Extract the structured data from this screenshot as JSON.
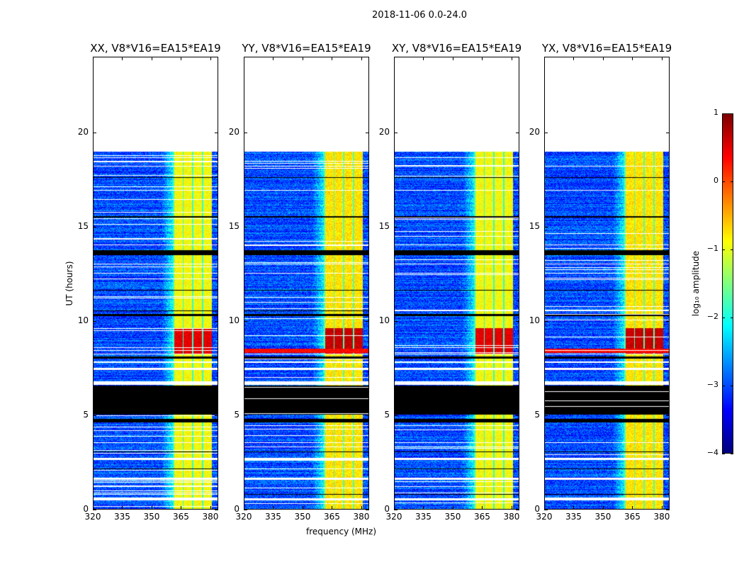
{
  "chart_data": {
    "type": "heatmap",
    "suptitle": "2018-11-06 0.0-24.0",
    "xlabel": "frequency (MHz)",
    "ylabel": "UT (hours)",
    "xlim": [
      320,
      384
    ],
    "ylim": [
      0,
      24
    ],
    "xticks": [
      "320",
      "335",
      "350",
      "365",
      "380"
    ],
    "yticks": [
      "0",
      "5",
      "10",
      "15",
      "20"
    ],
    "panels": [
      {
        "title": "XX, V8*V16=EA15*EA19",
        "rfi_line_hours": []
      },
      {
        "title": "YY, V8*V16=EA15*EA19",
        "rfi_line_hours": [
          8.3,
          8.5
        ]
      },
      {
        "title": "XY, V8*V16=EA15*EA19",
        "rfi_line_hours": []
      },
      {
        "title": "YX, V8*V16=EA15*EA19",
        "rfi_line_hours": [
          8.3,
          8.5
        ]
      }
    ],
    "data_end_hour": 19,
    "band_mhz": [
      361,
      381
    ],
    "flagged_hours": [
      [
        5.0,
        6.55
      ],
      [
        4.6,
        4.8
      ],
      [
        13.5,
        13.75
      ],
      [
        10.25,
        10.35
      ],
      [
        10.5,
        10.55
      ],
      [
        8.0,
        8.1
      ],
      [
        3.0,
        3.05
      ],
      [
        2.1,
        2.15
      ],
      [
        0.75,
        0.8
      ],
      [
        11.6,
        11.65
      ],
      [
        15.5,
        15.55
      ],
      [
        17.6,
        17.65
      ]
    ],
    "nodata_hours": [
      [
        6.6,
        6.8
      ],
      [
        7.4,
        7.5
      ],
      [
        7.75,
        7.85
      ],
      [
        8.2,
        8.25
      ],
      [
        1.55,
        1.65
      ],
      [
        0.45,
        0.55
      ],
      [
        2.6,
        2.7
      ],
      [
        3.5,
        3.55
      ],
      [
        12.5,
        12.55
      ],
      [
        13.0,
        13.05
      ],
      [
        14.0,
        14.05
      ],
      [
        16.9,
        16.95
      ],
      [
        18.2,
        18.25
      ]
    ],
    "hot_hours": [
      8.2,
      9.6
    ],
    "colorbar": {
      "label": "log₁₀ amplitude",
      "range": [
        -4,
        1
      ],
      "ticks": [
        "1",
        "0",
        "−1",
        "−2",
        "−3",
        "−4"
      ],
      "colormap": "jet"
    }
  }
}
